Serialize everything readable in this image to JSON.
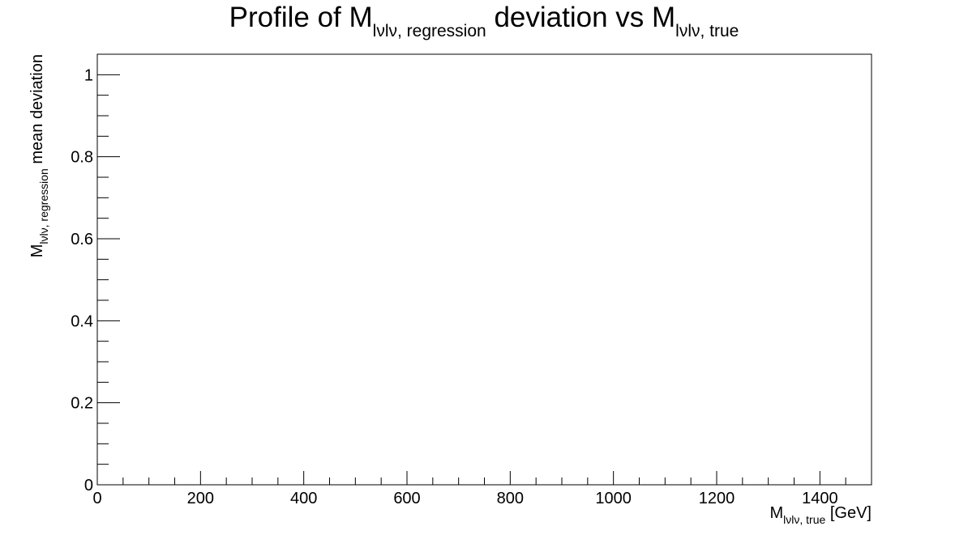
{
  "chart_data": {
    "type": "scatter",
    "title": {
      "prefix": "Profile of M",
      "sub1": "lνlν, regression",
      "middle": " deviation vs M",
      "sub2": "lνlν, true"
    },
    "xlabel": {
      "main": "M",
      "sub": "lνlν, true",
      "suffix": " [GeV]"
    },
    "ylabel": {
      "main": "M",
      "sub": "lνlν, regression",
      "suffix": " mean deviation"
    },
    "xlim": [
      0,
      1500
    ],
    "ylim": [
      0,
      1.05
    ],
    "x_ticks": [
      0,
      200,
      400,
      600,
      800,
      1000,
      1200,
      1400
    ],
    "x_tick_labels": [
      "0",
      "200",
      "400",
      "600",
      "800",
      "1000",
      "1200",
      "1400"
    ],
    "y_ticks": [
      0,
      0.2,
      0.4,
      0.6,
      0.8,
      1
    ],
    "y_tick_labels": [
      "0",
      "0.2",
      "0.4",
      "0.6",
      "0.8",
      "1"
    ],
    "x_minor_step": 50,
    "y_minor_step": 0.05,
    "grid": false,
    "series": [
      {
        "x": [],
        "y": []
      }
    ]
  }
}
